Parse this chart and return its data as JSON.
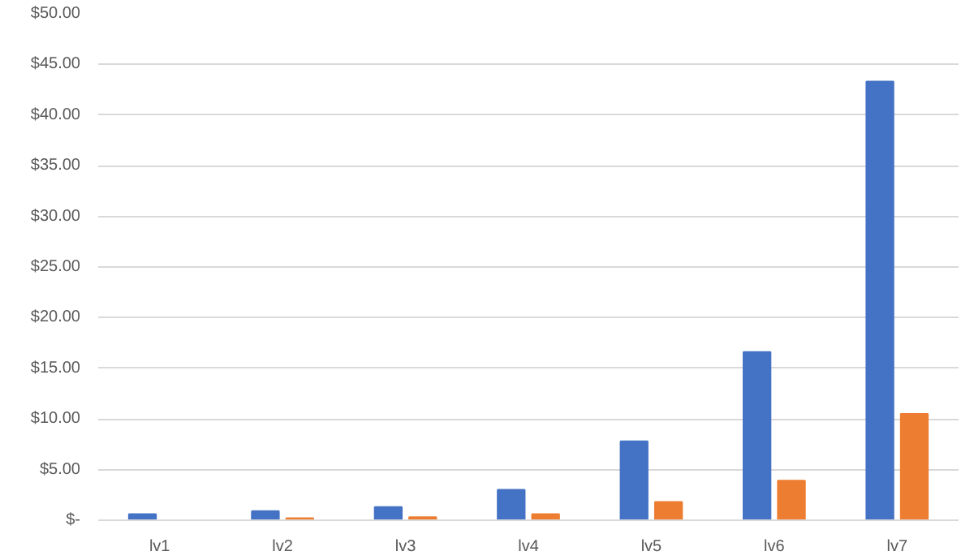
{
  "chart_data": {
    "type": "bar",
    "categories": [
      "lv1",
      "lv2",
      "lv3",
      "lv4",
      "lv5",
      "lv6",
      "lv7"
    ],
    "series": [
      {
        "color": "#4472c4",
        "values": [
          0.6,
          0.9,
          1.3,
          3.0,
          7.8,
          16.6,
          43.3
        ]
      },
      {
        "color": "#ed7d31",
        "values": [
          0,
          0.2,
          0.3,
          0.6,
          1.8,
          3.9,
          10.5
        ]
      }
    ],
    "ylim": [
      0,
      50
    ],
    "yticks": [
      {
        "value": 0,
        "label": "$-"
      },
      {
        "value": 5,
        "label": "$5.00"
      },
      {
        "value": 10,
        "label": "$10.00"
      },
      {
        "value": 15,
        "label": "$15.00"
      },
      {
        "value": 20,
        "label": "$20.00"
      },
      {
        "value": 25,
        "label": "$25.00"
      },
      {
        "value": 30,
        "label": "$30.00"
      },
      {
        "value": 35,
        "label": "$35.00"
      },
      {
        "value": 40,
        "label": "$40.00"
      },
      {
        "value": 45,
        "label": "$45.00"
      },
      {
        "value": 50,
        "label": "$50.00"
      }
    ],
    "grid": "y"
  }
}
